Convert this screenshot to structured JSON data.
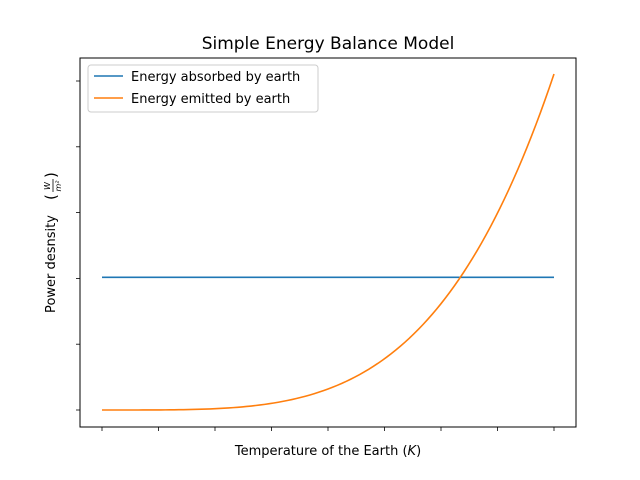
{
  "chart_data": {
    "type": "line",
    "title": "Simple Energy Balance Model",
    "xlabel": "Temperature of the Earth",
    "xlabel_unit": "K",
    "ylabel": "Power desnsity",
    "ylabel_unit_num": "W",
    "ylabel_unit_den": "m²",
    "legend_position": "top-left",
    "grid": false,
    "tick_labels_shown": false,
    "x_tick_count": 9,
    "y_tick_count": 6,
    "x": [
      0,
      0.125,
      0.25,
      0.375,
      0.5,
      0.625,
      0.75,
      0.875,
      1.0
    ],
    "series": [
      {
        "name": "Energy absorbed by earth",
        "color": "#1f77b4",
        "kind": "constant",
        "values": [
          0.395,
          0.395,
          0.395,
          0.395,
          0.395,
          0.395,
          0.395,
          0.395,
          0.395
        ]
      },
      {
        "name": "Energy emitted by earth",
        "color": "#ff7f0e",
        "kind": "power4",
        "values": [
          0.0,
          0.0002,
          0.0039,
          0.0198,
          0.0625,
          0.1526,
          0.3164,
          0.5862,
          1.0
        ]
      }
    ]
  }
}
